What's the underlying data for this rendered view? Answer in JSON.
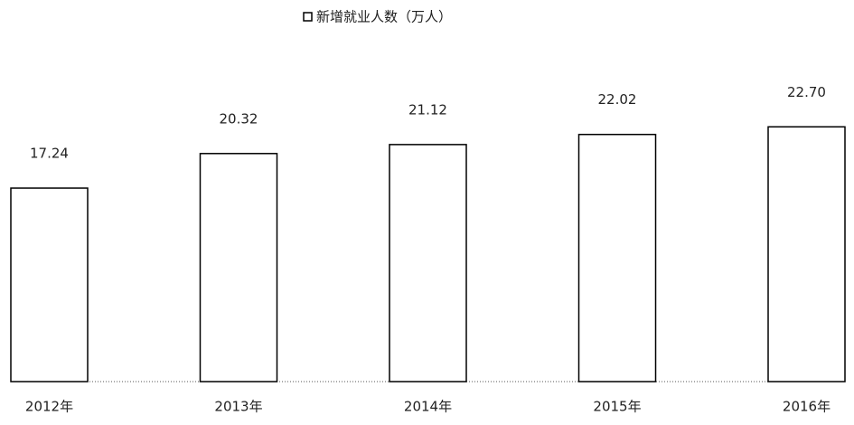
{
  "chart_data": {
    "type": "bar",
    "categories": [
      "2012年",
      "2013年",
      "2014年",
      "2015年",
      "2016年"
    ],
    "series": [
      {
        "name": "新增就业人数（万人）",
        "color": "#ffffff",
        "values": [
          17.24,
          20.32,
          21.12,
          22.02,
          22.7
        ],
        "value_labels": [
          "17.24",
          "20.32",
          "21.12",
          "22.02",
          "22.70"
        ]
      }
    ],
    "ylim": [
      0,
      34
    ],
    "legend": "top"
  }
}
